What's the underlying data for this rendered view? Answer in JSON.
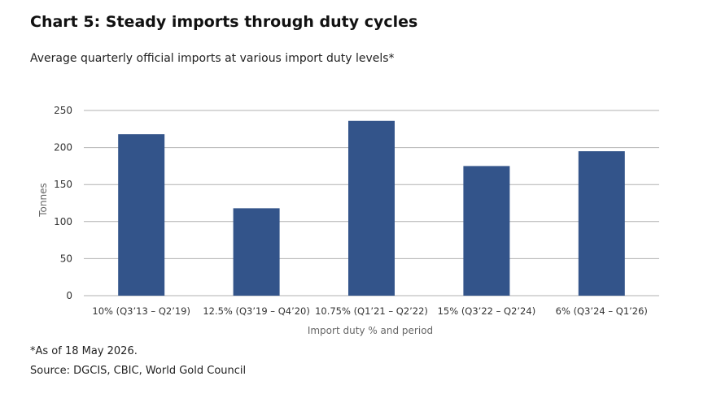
{
  "title": "Chart 5: Steady imports through duty cycles",
  "subtitle": "Average quarterly official imports at various import duty levels*",
  "footnote": "*As of 18 May 2026.",
  "source": "Source: DGCIS, CBIC, World Gold Council",
  "chart_data": {
    "type": "bar",
    "categories": [
      "10% (Q3’13 – Q2’19)",
      "12.5% (Q3’19 – Q4’20)",
      "10.75% (Q1’21 – Q2’22)",
      "15% (Q3’22 – Q2’24)",
      "6% (Q3’24 – Q1’26)"
    ],
    "values": [
      218,
      118,
      236,
      175,
      195
    ],
    "xlabel": "Import duty % and period",
    "ylabel": "Tonnes",
    "ylim": [
      0,
      250
    ],
    "yticks": [
      0,
      50,
      100,
      150,
      200,
      250
    ],
    "grid": true,
    "bar_color": "#33548a",
    "grid_color": "#b0b0b0"
  }
}
